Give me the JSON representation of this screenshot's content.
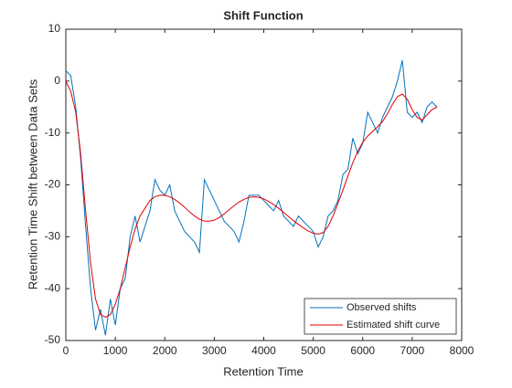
{
  "chart_data": {
    "type": "line",
    "title": "Shift Function",
    "xlabel": "Retention Time",
    "ylabel": "Retention Time Shift between Data Sets",
    "x": [
      0,
      100,
      200,
      300,
      400,
      500,
      600,
      700,
      800,
      900,
      1000,
      1100,
      1200,
      1300,
      1400,
      1500,
      1600,
      1700,
      1800,
      1900,
      2000,
      2100,
      2200,
      2300,
      2400,
      2500,
      2600,
      2700,
      2800,
      2900,
      3000,
      3100,
      3200,
      3300,
      3400,
      3500,
      3600,
      3700,
      3800,
      3900,
      4000,
      4100,
      4200,
      4300,
      4400,
      4500,
      4600,
      4700,
      4800,
      4900,
      5000,
      5100,
      5200,
      5300,
      5400,
      5500,
      5600,
      5700,
      5800,
      5900,
      6000,
      6100,
      6200,
      6300,
      6400,
      6500,
      6600,
      6700,
      6800,
      6900,
      7000,
      7100,
      7200,
      7300,
      7400,
      7500
    ],
    "series": [
      {
        "name": "Observed shifts",
        "color": "#0072bd",
        "values": [
          2,
          1,
          -5,
          -15,
          -28,
          -40,
          -48,
          -44,
          -49,
          -42,
          -47,
          -40,
          -38,
          -30,
          -26,
          -31,
          -28,
          -25,
          -19,
          -21,
          -22,
          -20,
          -25,
          -27,
          -29,
          -30,
          -31,
          -33,
          -19,
          -21,
          -23,
          -25,
          -27,
          -28,
          -29,
          -31,
          -27,
          -22,
          -22,
          -22,
          -23,
          -24,
          -25,
          -23,
          -26,
          -27,
          -28,
          -26,
          -27,
          -28,
          -29,
          -32,
          -30,
          -26,
          -25,
          -23,
          -18,
          -17,
          -11,
          -14,
          -12,
          -6,
          -8,
          -10,
          -7,
          -5,
          -3,
          0,
          4,
          -6,
          -7,
          -6,
          -8,
          -5,
          -4,
          -5
        ]
      },
      {
        "name": "Estimated shift curve",
        "color": "#e00000",
        "values": [
          0,
          -2,
          -6,
          -14,
          -25,
          -35,
          -42,
          -45,
          -45.5,
          -45,
          -43,
          -40,
          -36,
          -32,
          -28.5,
          -26,
          -24.5,
          -23,
          -22.3,
          -22,
          -22,
          -22.3,
          -22.8,
          -23.5,
          -24.3,
          -25.2,
          -26,
          -26.6,
          -27,
          -27,
          -26.8,
          -26.3,
          -25.6,
          -24.8,
          -24,
          -23.3,
          -22.8,
          -22.4,
          -22.3,
          -22.4,
          -22.7,
          -23.2,
          -23.8,
          -24.5,
          -25.3,
          -26.1,
          -26.9,
          -27.6,
          -28.3,
          -28.9,
          -29.3,
          -29.5,
          -29.2,
          -28,
          -26,
          -23.5,
          -21,
          -18.3,
          -15.7,
          -13.5,
          -11.8,
          -10.6,
          -9.7,
          -8.8,
          -7.8,
          -6.3,
          -4.5,
          -3,
          -2.5,
          -3.5,
          -5.5,
          -7,
          -7.5,
          -6.5,
          -5.5,
          -5
        ]
      }
    ],
    "xlim": [
      0,
      8000
    ],
    "xticks": [
      0,
      1000,
      2000,
      3000,
      4000,
      5000,
      6000,
      7000,
      8000
    ],
    "ylim": [
      -50,
      10
    ],
    "yticks": [
      -50,
      -40,
      -30,
      -20,
      -10,
      0,
      10
    ],
    "grid": false,
    "legend_loc": "lower right"
  }
}
